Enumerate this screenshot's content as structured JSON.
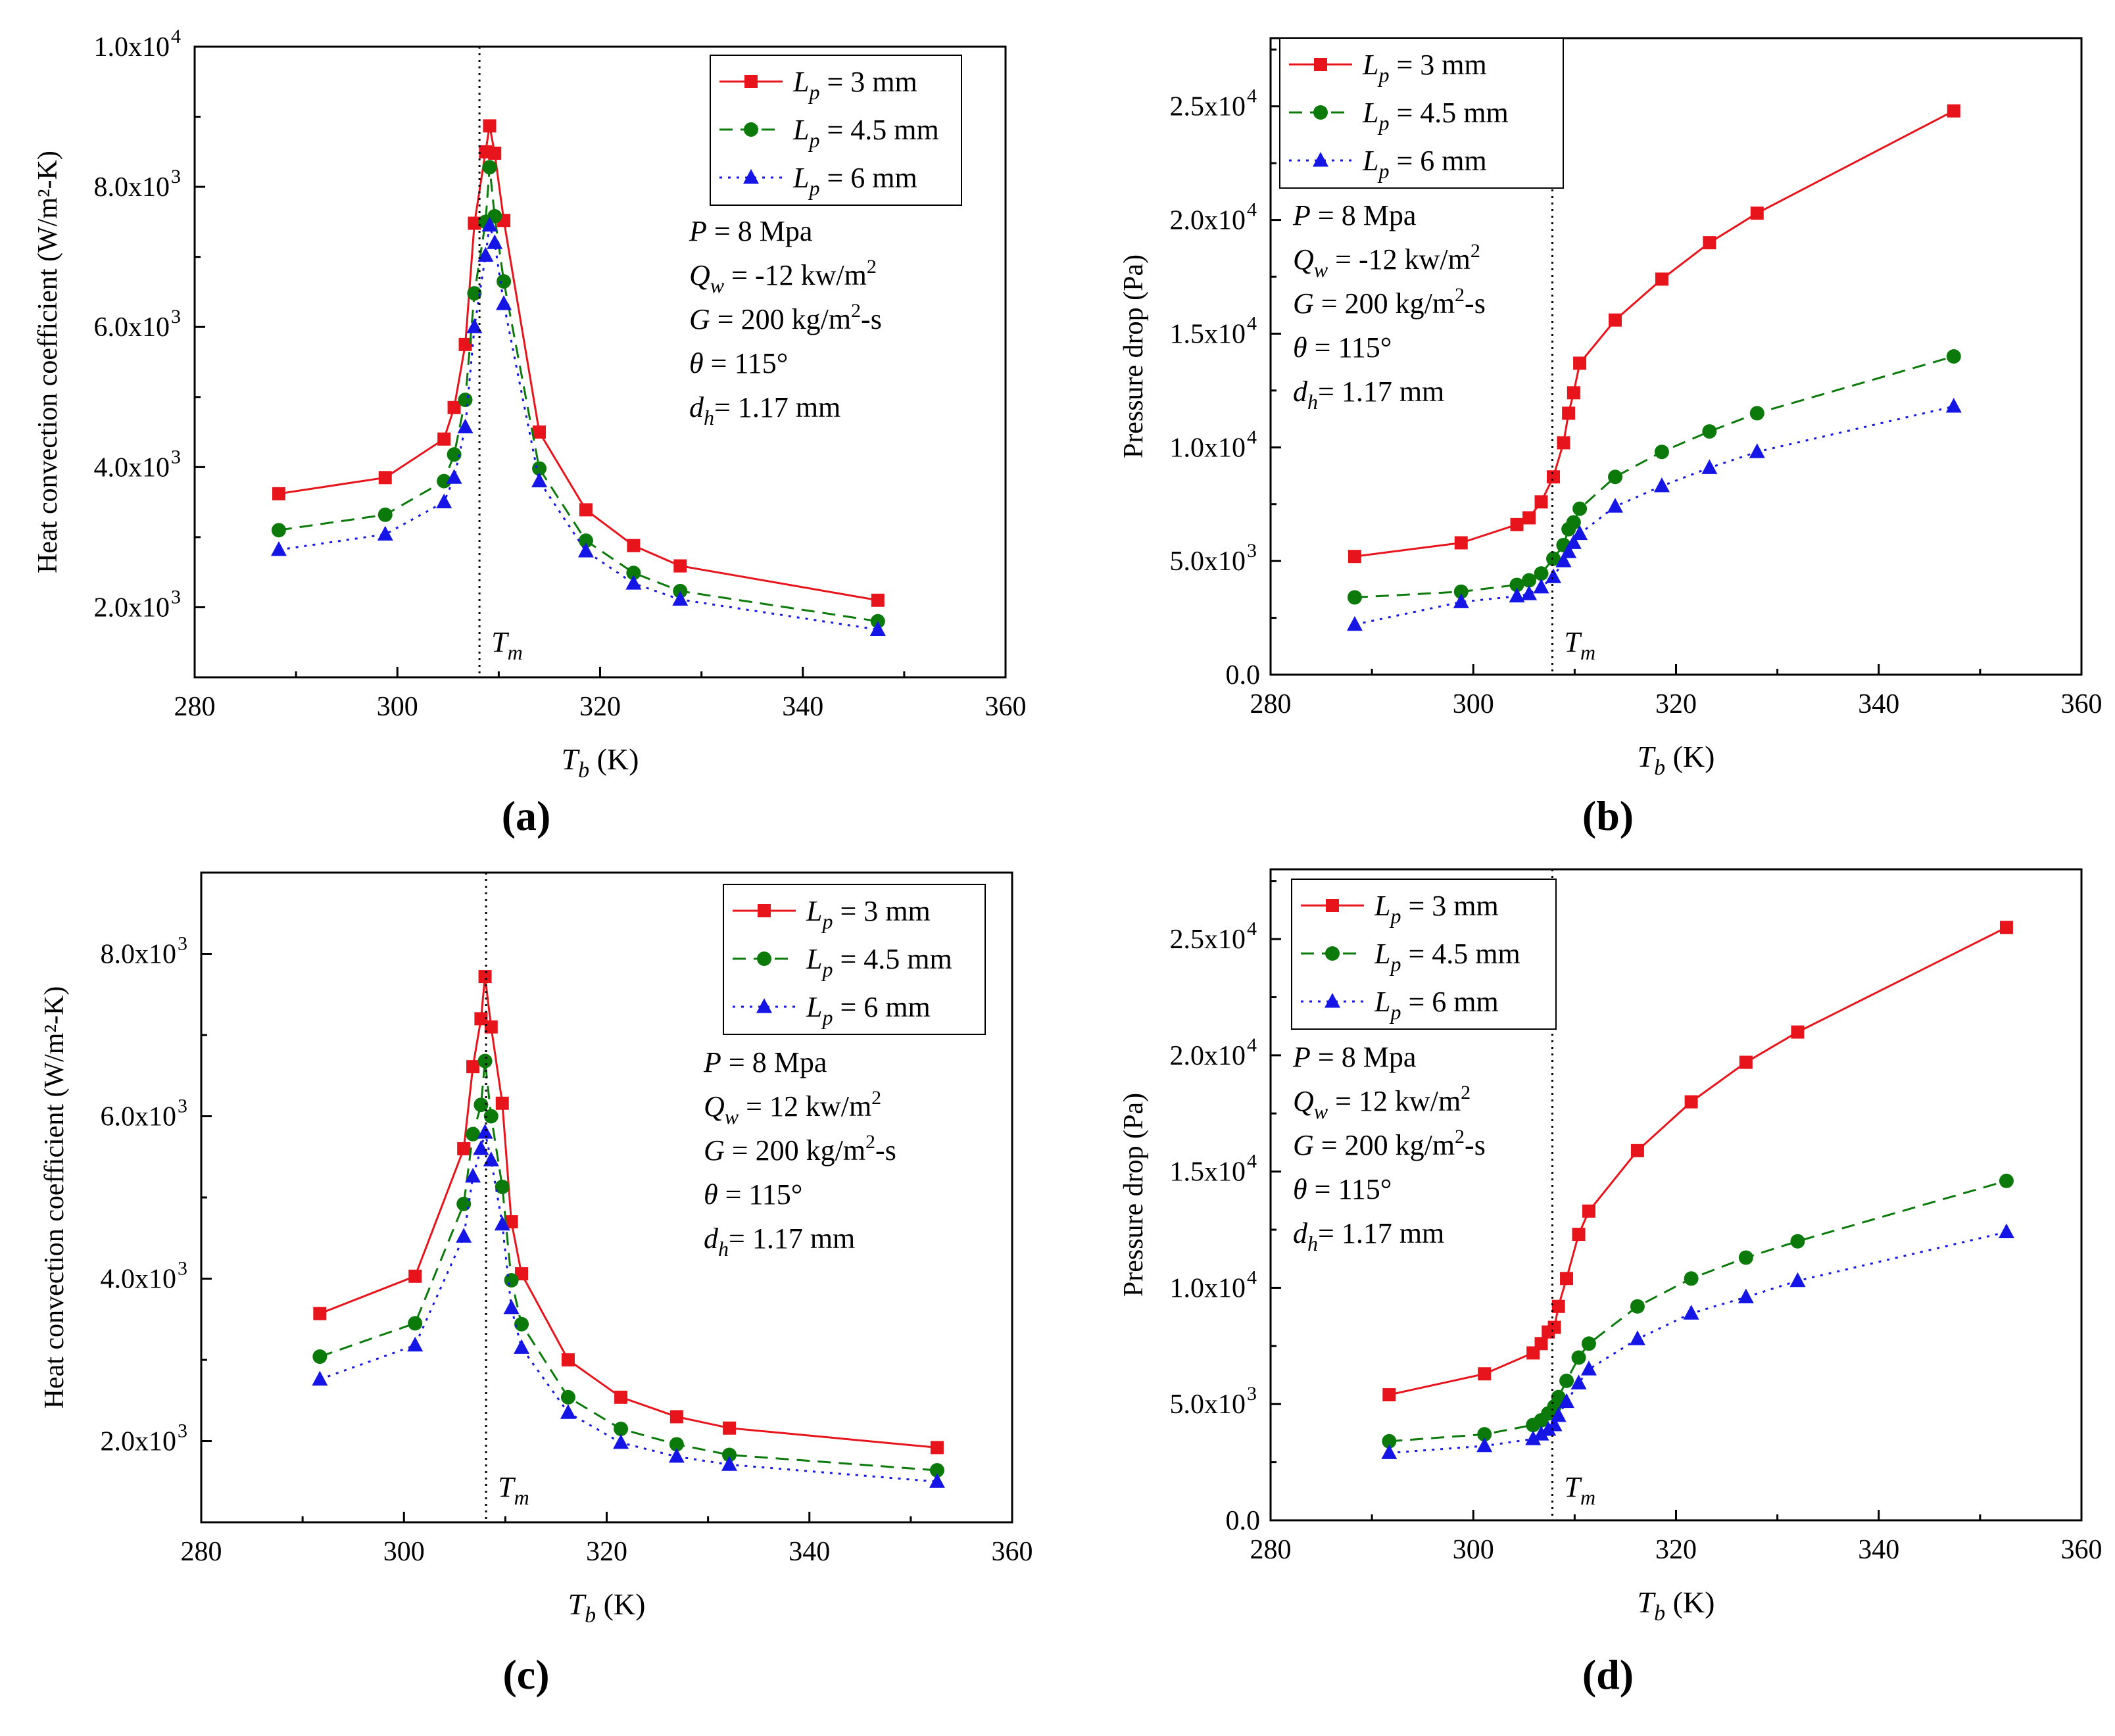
{
  "figure": {
    "series_styles": [
      {
        "color": "#e8141c",
        "dash": "solid",
        "marker": "square"
      },
      {
        "color": "#0b7a0b",
        "dash": "dash",
        "marker": "circle"
      },
      {
        "color": "#1515e6",
        "dash": "dot",
        "marker": "triangle"
      }
    ]
  },
  "chart_data": [
    {
      "panel": "(a)",
      "type": "line",
      "xlabel": {
        "var": "T",
        "sub": "b",
        "unit": " (K)"
      },
      "ylabel": "Heat convection coefficient (W/m²-K)",
      "xlim": [
        280,
        360
      ],
      "ylim": [
        1000,
        10000
      ],
      "xticks": [
        280,
        300,
        320,
        340,
        360
      ],
      "xtick_labels": [
        "280",
        "300",
        "320",
        "340",
        "360"
      ],
      "yticks": [
        2000,
        4000,
        6000,
        8000,
        10000
      ],
      "ytick_labels": [
        {
          "mant": "2.0x10",
          "exp": "3"
        },
        {
          "mant": "4.0x10",
          "exp": "3"
        },
        {
          "mant": "6.0x10",
          "exp": "3"
        },
        {
          "mant": "8.0x10",
          "exp": "3"
        },
        {
          "mant": "1.0x10",
          "exp": "4"
        }
      ],
      "tm": {
        "x": 308.1,
        "var": "T",
        "sub": "m"
      },
      "legend_position": "top-right",
      "series": [
        {
          "name": "L_p = 3 mm",
          "legend": {
            "var": "L",
            "sub": "p",
            "rest": " = 3 mm"
          },
          "x": [
            288.3,
            298.8,
            304.6,
            305.6,
            306.7,
            307.6,
            308.7,
            309.1,
            309.6,
            310.5,
            314.0,
            318.6,
            323.3,
            327.9,
            347.4
          ],
          "y": [
            3620,
            3850,
            4400,
            4850,
            5750,
            7480,
            8500,
            8870,
            8480,
            7520,
            4500,
            3390,
            2880,
            2590,
            2100
          ]
        },
        {
          "name": "L_p = 4.5 mm",
          "legend": {
            "var": "L",
            "sub": "p",
            "rest": " = 4.5 mm"
          },
          "x": [
            288.3,
            298.8,
            304.6,
            305.6,
            306.7,
            307.6,
            308.7,
            309.1,
            309.6,
            310.5,
            314.0,
            318.6,
            323.3,
            327.9,
            347.4
          ],
          "y": [
            3100,
            3320,
            3800,
            4180,
            4960,
            6480,
            7500,
            8280,
            7580,
            6650,
            3980,
            2950,
            2490,
            2230,
            1800
          ]
        },
        {
          "name": "L_p = 6 mm",
          "legend": {
            "var": "L",
            "sub": "p",
            "rest": " = 6 mm"
          },
          "x": [
            288.3,
            298.8,
            304.6,
            305.6,
            306.7,
            307.6,
            308.7,
            309.1,
            309.6,
            310.5,
            314.0,
            318.6,
            323.3,
            327.9,
            347.4
          ],
          "y": [
            2820,
            3040,
            3500,
            3850,
            4570,
            6000,
            7020,
            7450,
            7200,
            6330,
            3800,
            2800,
            2340,
            2110,
            1680
          ]
        }
      ],
      "conditions": [
        {
          "var": "P",
          "sub": "",
          "rest": " = 8 Mpa",
          "sup": ""
        },
        {
          "var": "Q",
          "sub": "w",
          "rest": " = -12 kw/m",
          "sup": "2"
        },
        {
          "var": "G",
          "sub": "",
          "rest": " = 200 kg/m",
          "sup": "2",
          "after": "-s"
        },
        {
          "var": "θ",
          "sub": "",
          "rest": " = 115°",
          "sup": ""
        },
        {
          "var": "d",
          "sub": "h",
          "rest": "= 1.17 mm",
          "sup": ""
        }
      ]
    },
    {
      "panel": "(b)",
      "type": "line",
      "xlabel": {
        "var": "T",
        "sub": "b",
        "unit": " (K)"
      },
      "ylabel": "Pressure drop (Pa)",
      "xlim": [
        280,
        360
      ],
      "ylim": [
        0,
        28000
      ],
      "xticks": [
        280,
        300,
        320,
        340,
        360
      ],
      "xtick_labels": [
        "280",
        "300",
        "320",
        "340",
        "360"
      ],
      "yticks": [
        0,
        5000,
        10000,
        15000,
        20000,
        25000
      ],
      "ytick_labels": [
        {
          "mant": "0.0",
          "exp": ""
        },
        {
          "mant": "5.0x10",
          "exp": "3"
        },
        {
          "mant": "1.0x10",
          "exp": "4"
        },
        {
          "mant": "1.5x10",
          "exp": "4"
        },
        {
          "mant": "2.0x10",
          "exp": "4"
        },
        {
          "mant": "2.5x10",
          "exp": "4"
        }
      ],
      "tm": {
        "x": 307.8,
        "var": "T",
        "sub": "m"
      },
      "legend_position": "top-left",
      "series": [
        {
          "name": "L_p = 3 mm",
          "legend": {
            "var": "L",
            "sub": "p",
            "rest": " = 3 mm"
          },
          "x": [
            288.3,
            298.8,
            304.3,
            305.5,
            306.7,
            307.9,
            308.9,
            309.4,
            309.9,
            310.5,
            314.0,
            318.6,
            323.3,
            328.0,
            347.4
          ],
          "y": [
            5200,
            5800,
            6600,
            6900,
            7600,
            8700,
            10200,
            11500,
            12400,
            13700,
            15600,
            17400,
            19000,
            20300,
            24800
          ]
        },
        {
          "name": "L_p = 4.5 mm",
          "legend": {
            "var": "L",
            "sub": "p",
            "rest": " = 4.5 mm"
          },
          "x": [
            288.3,
            298.8,
            304.3,
            305.5,
            306.7,
            307.9,
            308.9,
            309.4,
            309.9,
            310.5,
            314.0,
            318.6,
            323.3,
            328.0,
            347.4
          ],
          "y": [
            3400,
            3650,
            3950,
            4150,
            4450,
            5100,
            5700,
            6400,
            6700,
            7300,
            8700,
            9800,
            10700,
            11500,
            14000
          ]
        },
        {
          "name": "L_p = 6 mm",
          "legend": {
            "var": "L",
            "sub": "p",
            "rest": " = 6 mm"
          },
          "x": [
            288.3,
            298.8,
            304.3,
            305.5,
            306.7,
            307.9,
            308.9,
            309.4,
            309.9,
            310.5,
            314.0,
            318.6,
            323.3,
            328.0,
            347.4
          ],
          "y": [
            2200,
            3200,
            3450,
            3550,
            3850,
            4300,
            5000,
            5400,
            5800,
            6200,
            7400,
            8300,
            9100,
            9800,
            11800
          ]
        }
      ],
      "conditions": [
        {
          "var": "P",
          "sub": "",
          "rest": " = 8 Mpa",
          "sup": ""
        },
        {
          "var": "Q",
          "sub": "w",
          "rest": " = -12 kw/m",
          "sup": "2"
        },
        {
          "var": "G",
          "sub": "",
          "rest": " = 200 kg/m",
          "sup": "2",
          "after": "-s"
        },
        {
          "var": "θ",
          "sub": "",
          "rest": " = 115°",
          "sup": ""
        },
        {
          "var": "d",
          "sub": "h",
          "rest": "= 1.17 mm",
          "sup": ""
        }
      ]
    },
    {
      "panel": "(c)",
      "type": "line",
      "xlabel": {
        "var": "T",
        "sub": "b",
        "unit": " (K)"
      },
      "ylabel": "Heat convection coefficient (W/m²-K)",
      "xlim": [
        280,
        360
      ],
      "ylim": [
        1000,
        9000
      ],
      "xticks": [
        280,
        300,
        320,
        340,
        360
      ],
      "xtick_labels": [
        "280",
        "300",
        "320",
        "340",
        "360"
      ],
      "yticks": [
        2000,
        4000,
        6000,
        8000
      ],
      "ytick_labels": [
        {
          "mant": "2.0x10",
          "exp": "3"
        },
        {
          "mant": "4.0x10",
          "exp": "3"
        },
        {
          "mant": "6.0x10",
          "exp": "3"
        },
        {
          "mant": "8.0x10",
          "exp": "3"
        }
      ],
      "tm": {
        "x": 308.1,
        "var": "T",
        "sub": "m"
      },
      "legend_position": "top-right",
      "series": [
        {
          "name": "L_p = 3 mm",
          "legend": {
            "var": "L",
            "sub": "p",
            "rest": " = 3 mm"
          },
          "x": [
            291.7,
            301.1,
            305.9,
            306.8,
            307.6,
            308.0,
            308.6,
            309.7,
            310.6,
            311.6,
            316.2,
            321.4,
            326.9,
            332.1,
            352.6
          ],
          "y": [
            3570,
            4030,
            5600,
            6610,
            7200,
            7720,
            7100,
            6160,
            4700,
            4060,
            3000,
            2540,
            2300,
            2160,
            1920
          ]
        },
        {
          "name": "L_p = 4.5 mm",
          "legend": {
            "var": "L",
            "sub": "p",
            "rest": " = 4.5 mm"
          },
          "x": [
            291.7,
            301.1,
            305.9,
            306.8,
            307.6,
            308.0,
            308.6,
            309.7,
            310.6,
            311.6,
            316.2,
            321.4,
            326.9,
            332.1,
            352.6
          ],
          "y": [
            3040,
            3450,
            4920,
            5780,
            6140,
            6680,
            6000,
            5130,
            3980,
            3440,
            2540,
            2150,
            1960,
            1830,
            1640
          ]
        },
        {
          "name": "L_p = 6 mm",
          "legend": {
            "var": "L",
            "sub": "p",
            "rest": " = 6 mm"
          },
          "x": [
            291.7,
            301.1,
            305.9,
            306.8,
            307.6,
            308.0,
            308.6,
            309.7,
            310.6,
            311.6,
            316.2,
            321.4,
            326.9,
            332.1,
            352.6
          ],
          "y": [
            2760,
            3180,
            4520,
            5260,
            5600,
            5800,
            5460,
            4670,
            3640,
            3150,
            2350,
            1980,
            1810,
            1710,
            1500
          ]
        }
      ],
      "conditions": [
        {
          "var": "P",
          "sub": "",
          "rest": " = 8 Mpa",
          "sup": ""
        },
        {
          "var": "Q",
          "sub": "w",
          "rest": " = 12 kw/m",
          "sup": "2"
        },
        {
          "var": "G",
          "sub": "",
          "rest": " = 200 kg/m",
          "sup": "2",
          "after": "-s"
        },
        {
          "var": "θ",
          "sub": "",
          "rest": " = 115°",
          "sup": ""
        },
        {
          "var": "d",
          "sub": "h",
          "rest": "= 1.17 mm",
          "sup": ""
        }
      ]
    },
    {
      "panel": "(d)",
      "type": "line",
      "xlabel": {
        "var": "T",
        "sub": "b",
        "unit": " (K)"
      },
      "ylabel": "Pressure drop (Pa)",
      "xlim": [
        280,
        360
      ],
      "ylim": [
        0,
        28000
      ],
      "xticks": [
        280,
        300,
        320,
        340,
        360
      ],
      "xtick_labels": [
        "280",
        "300",
        "320",
        "340",
        "360"
      ],
      "yticks": [
        0,
        5000,
        10000,
        15000,
        20000,
        25000
      ],
      "ytick_labels": [
        {
          "mant": "0.0",
          "exp": ""
        },
        {
          "mant": "5.0x10",
          "exp": "3"
        },
        {
          "mant": "1.0x10",
          "exp": "4"
        },
        {
          "mant": "1.5x10",
          "exp": "4"
        },
        {
          "mant": "2.0x10",
          "exp": "4"
        },
        {
          "mant": "2.5x10",
          "exp": "4"
        }
      ],
      "tm": {
        "x": 307.8,
        "var": "T",
        "sub": "m"
      },
      "legend_position": "top-left",
      "series": [
        {
          "name": "L_p = 3 mm",
          "legend": {
            "var": "L",
            "sub": "p",
            "rest": " = 3 mm"
          },
          "x": [
            291.7,
            301.1,
            305.9,
            306.7,
            307.4,
            308.0,
            308.4,
            309.2,
            310.4,
            311.4,
            316.2,
            321.5,
            326.9,
            332.0,
            352.6
          ],
          "y": [
            5400,
            6300,
            7200,
            7600,
            8100,
            8300,
            9200,
            10400,
            12300,
            13300,
            15900,
            18000,
            19700,
            21000,
            25500
          ]
        },
        {
          "name": "L_p = 4.5 mm",
          "legend": {
            "var": "L",
            "sub": "p",
            "rest": " = 4.5 mm"
          },
          "x": [
            291.7,
            301.1,
            305.9,
            306.7,
            307.4,
            308.0,
            308.4,
            309.2,
            310.4,
            311.4,
            316.2,
            321.5,
            326.9,
            332.0,
            352.6
          ],
          "y": [
            3400,
            3700,
            4100,
            4300,
            4600,
            4900,
            5300,
            6000,
            7000,
            7600,
            9200,
            10400,
            11300,
            12000,
            14600
          ]
        },
        {
          "name": "L_p = 6 mm",
          "legend": {
            "var": "L",
            "sub": "p",
            "rest": " = 6 mm"
          },
          "x": [
            291.7,
            301.1,
            305.9,
            306.7,
            307.4,
            308.0,
            308.4,
            309.2,
            310.4,
            311.4,
            316.2,
            321.5,
            326.9,
            332.0,
            352.6
          ],
          "y": [
            2900,
            3200,
            3500,
            3700,
            3900,
            4100,
            4500,
            5100,
            5900,
            6500,
            7800,
            8900,
            9600,
            10300,
            12400
          ]
        }
      ],
      "conditions": [
        {
          "var": "P",
          "sub": "",
          "rest": " = 8 Mpa",
          "sup": ""
        },
        {
          "var": "Q",
          "sub": "w",
          "rest": " = 12 kw/m",
          "sup": "2"
        },
        {
          "var": "G",
          "sub": "",
          "rest": " = 200 kg/m",
          "sup": "2",
          "after": "-s"
        },
        {
          "var": "θ",
          "sub": "",
          "rest": " = 115°",
          "sup": ""
        },
        {
          "var": "d",
          "sub": "h",
          "rest": "= 1.17 mm",
          "sup": ""
        }
      ]
    }
  ]
}
